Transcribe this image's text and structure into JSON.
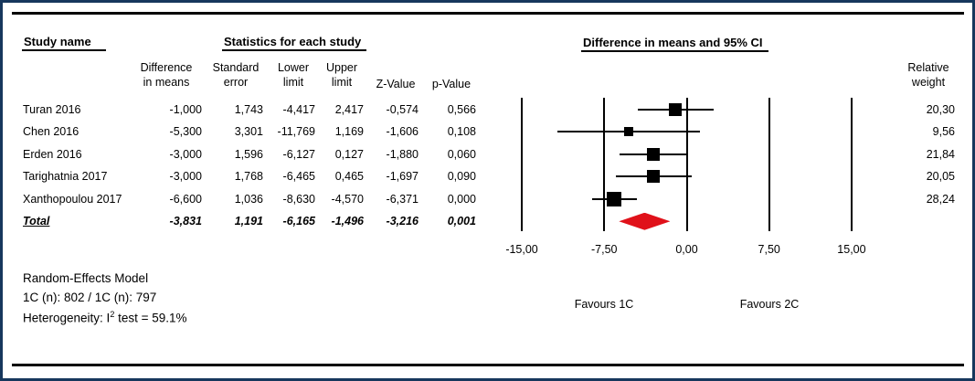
{
  "titles": {
    "study_name": "Study name",
    "statistics": "Statistics for each study",
    "ci_title": "Difference in means and 95% CI"
  },
  "columns": {
    "difference": "Difference\nin means",
    "standard_error": "Standard\nerror",
    "lower_limit": "Lower\nlimit",
    "upper_limit": "Upper\nlimit",
    "z_value": "Z-Value",
    "p_value": "p-Value",
    "relative_weight": "Relative\nweight"
  },
  "table": {
    "rows": [
      {
        "study": "Turan 2016",
        "diff": "-1,000",
        "se": "1,743",
        "lower": "-4,417",
        "upper": "2,417",
        "z": "-0,574",
        "p": "0,566",
        "weight": "20,30",
        "is_total": false
      },
      {
        "study": "Chen 2016",
        "diff": "-5,300",
        "se": "3,301",
        "lower": "-11,769",
        "upper": "1,169",
        "z": "-1,606",
        "p": "0,108",
        "weight": "9,56",
        "is_total": false
      },
      {
        "study": "Erden 2016",
        "diff": "-3,000",
        "se": "1,596",
        "lower": "-6,127",
        "upper": "0,127",
        "z": "-1,880",
        "p": "0,060",
        "weight": "21,84",
        "is_total": false
      },
      {
        "study": "Tarighatnia 2017",
        "diff": "-3,000",
        "se": "1,768",
        "lower": "-6,465",
        "upper": "0,465",
        "z": "-1,697",
        "p": "0,090",
        "weight": "20,05",
        "is_total": false
      },
      {
        "study": "Xanthopoulou 2017",
        "diff": "-6,600",
        "se": "1,036",
        "lower": "-8,630",
        "upper": "-4,570",
        "z": "-6,371",
        "p": "0,000",
        "weight": "28,24",
        "is_total": false
      },
      {
        "study": "Total",
        "diff": "-3,831",
        "se": "1,191",
        "lower": "-6,165",
        "upper": "-1,496",
        "z": "-3,216",
        "p": "0,001",
        "weight": "",
        "is_total": true
      }
    ]
  },
  "axis": {
    "ticks": [
      "-15,00",
      "-7,50",
      "0,00",
      "7,50",
      "15,00"
    ],
    "favours_left": "Favours 1C",
    "favours_right": "Favours 2C"
  },
  "footer": {
    "model": "Random-Effects Model",
    "n_line": "1C (n): 802 / 1C (n): 797",
    "heterogeneity_prefix": "Heterogeneity: I",
    "heterogeneity_sup": "2",
    "heterogeneity_suffix": " test = 59.1%"
  },
  "colors": {
    "border": "#17375d",
    "marker": "#000000",
    "diamond": "#e0111a"
  },
  "chart_data": {
    "type": "forest",
    "title": "Difference in means and 95% CI",
    "xlim": [
      -15,
      15
    ],
    "x_ticks": [
      -15,
      -7.5,
      0,
      7.5,
      15
    ],
    "grid": true,
    "studies": [
      {
        "name": "Turan 2016",
        "mean": -1.0,
        "lower": -4.417,
        "upper": 2.417,
        "weight": 20.3
      },
      {
        "name": "Chen 2016",
        "mean": -5.3,
        "lower": -11.769,
        "upper": 1.169,
        "weight": 9.56
      },
      {
        "name": "Erden 2016",
        "mean": -3.0,
        "lower": -6.127,
        "upper": 0.127,
        "weight": 21.84
      },
      {
        "name": "Tarighatnia 2017",
        "mean": -3.0,
        "lower": -6.465,
        "upper": 0.465,
        "weight": 20.05
      },
      {
        "name": "Xanthopoulou 2017",
        "mean": -6.6,
        "lower": -8.63,
        "upper": -4.57,
        "weight": 28.24
      }
    ],
    "total": {
      "name": "Total",
      "mean": -3.831,
      "lower": -6.165,
      "upper": -1.496
    }
  }
}
